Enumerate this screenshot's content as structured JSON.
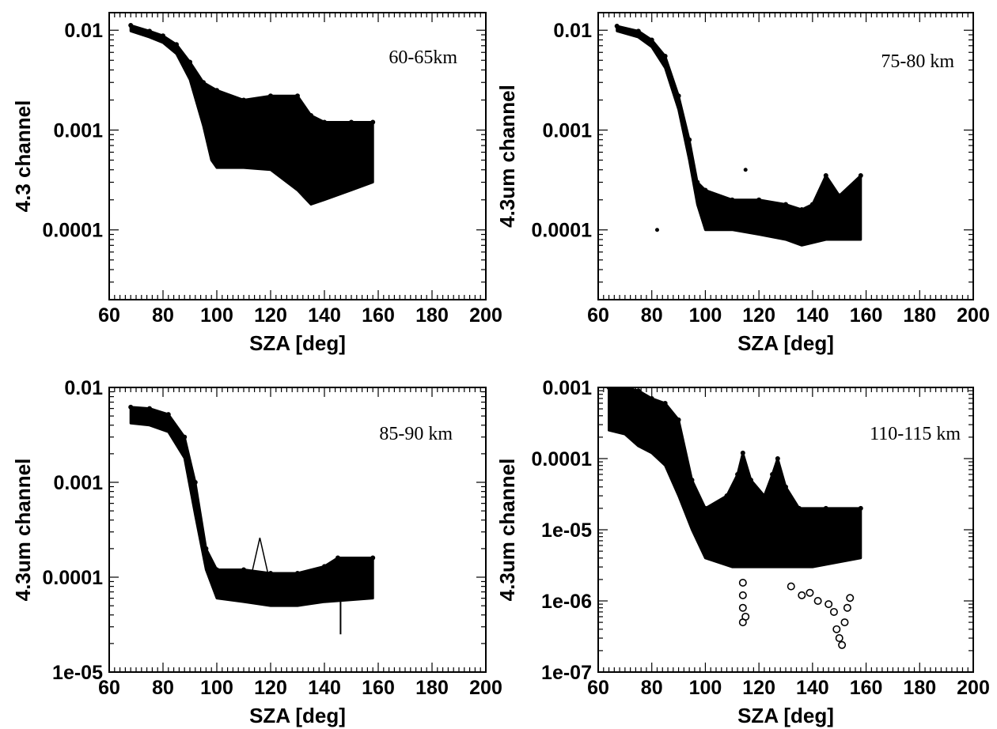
{
  "chart_data": [
    {
      "type": "scatter",
      "annotation": "60-65km",
      "xlabel": "SZA [deg]",
      "ylabel": "4.3 channel",
      "xlim": [
        60,
        200
      ],
      "ylim": [
        2e-05,
        0.015
      ],
      "yscale": "log",
      "grid": false,
      "xticks": [
        60,
        80,
        100,
        120,
        140,
        160,
        180,
        200
      ],
      "xtick_labels": [
        "60",
        "80",
        "100",
        "120",
        "140",
        "160",
        "180",
        "200"
      ],
      "yticks": [
        0.0001,
        0.001,
        0.01
      ],
      "ytick_labels": [
        "0.0001",
        "0.001",
        "0.01"
      ],
      "lower": [
        [
          68,
          0.0098
        ],
        [
          75,
          0.0085
        ],
        [
          80,
          0.0075
        ],
        [
          85,
          0.0058
        ],
        [
          90,
          0.0032
        ],
        [
          95,
          0.0011
        ],
        [
          98,
          0.0005
        ],
        [
          100,
          0.00042
        ],
        [
          110,
          0.00042
        ],
        [
          120,
          0.0004
        ],
        [
          130,
          0.00025
        ],
        [
          135,
          0.00018
        ],
        [
          140,
          0.0002
        ],
        [
          150,
          0.00025
        ],
        [
          158,
          0.0003
        ]
      ],
      "upper": [
        [
          68,
          0.0112
        ],
        [
          75,
          0.0098
        ],
        [
          80,
          0.0088
        ],
        [
          85,
          0.0072
        ],
        [
          90,
          0.0048
        ],
        [
          95,
          0.003
        ],
        [
          100,
          0.0025
        ],
        [
          110,
          0.002
        ],
        [
          120,
          0.0022
        ],
        [
          130,
          0.0022
        ],
        [
          135,
          0.0014
        ],
        [
          140,
          0.0012
        ],
        [
          150,
          0.0012
        ],
        [
          158,
          0.0012
        ]
      ],
      "outliers": []
    },
    {
      "type": "scatter",
      "annotation": "75-80 km",
      "xlabel": "SZA [deg]",
      "ylabel": "4.3um channel",
      "xlim": [
        60,
        200
      ],
      "ylim": [
        2e-05,
        0.015
      ],
      "yscale": "log",
      "grid": false,
      "xticks": [
        60,
        80,
        100,
        120,
        140,
        160,
        180,
        200
      ],
      "xtick_labels": [
        "60",
        "80",
        "100",
        "120",
        "140",
        "160",
        "180",
        "200"
      ],
      "yticks": [
        0.0001,
        0.001,
        0.01
      ],
      "ytick_labels": [
        "0.0001",
        "0.001",
        "0.01"
      ],
      "lower": [
        [
          67,
          0.0098
        ],
        [
          75,
          0.0085
        ],
        [
          80,
          0.0068
        ],
        [
          85,
          0.0042
        ],
        [
          90,
          0.0016
        ],
        [
          94,
          0.0005
        ],
        [
          97,
          0.00018
        ],
        [
          100,
          0.0001
        ],
        [
          110,
          0.0001
        ],
        [
          120,
          9e-05
        ],
        [
          130,
          8e-05
        ],
        [
          136,
          7e-05
        ],
        [
          145,
          8e-05
        ],
        [
          158,
          8e-05
        ]
      ],
      "upper": [
        [
          67,
          0.011
        ],
        [
          75,
          0.0098
        ],
        [
          80,
          0.008
        ],
        [
          85,
          0.0055
        ],
        [
          90,
          0.0022
        ],
        [
          94,
          0.0008
        ],
        [
          97,
          0.0003
        ],
        [
          100,
          0.00025
        ],
        [
          110,
          0.0002
        ],
        [
          120,
          0.0002
        ],
        [
          130,
          0.00018
        ],
        [
          136,
          0.00016
        ],
        [
          140,
          0.00018
        ],
        [
          145,
          0.00035
        ],
        [
          150,
          0.00022
        ],
        [
          158,
          0.00035
        ]
      ],
      "outliers": [
        [
          82,
          0.0001
        ],
        [
          115,
          0.0004
        ]
      ]
    },
    {
      "type": "scatter",
      "annotation": "85-90 km",
      "xlabel": "SZA [deg]",
      "ylabel": "4.3um channel",
      "xlim": [
        60,
        200
      ],
      "ylim": [
        1e-05,
        0.01
      ],
      "yscale": "log",
      "grid": false,
      "xticks": [
        60,
        80,
        100,
        120,
        140,
        160,
        180,
        200
      ],
      "xtick_labels": [
        "60",
        "80",
        "100",
        "120",
        "140",
        "160",
        "180",
        "200"
      ],
      "yticks": [
        1e-05,
        0.0001,
        0.001,
        0.01
      ],
      "ytick_labels": [
        "1e-05",
        "0.0001",
        "0.001",
        "0.01"
      ],
      "lower": [
        [
          68,
          0.0042
        ],
        [
          75,
          0.004
        ],
        [
          82,
          0.0034
        ],
        [
          88,
          0.0018
        ],
        [
          92,
          0.00045
        ],
        [
          96,
          0.00012
        ],
        [
          100,
          6e-05
        ],
        [
          110,
          5.5e-05
        ],
        [
          120,
          5e-05
        ],
        [
          130,
          5e-05
        ],
        [
          140,
          5.5e-05
        ],
        [
          158,
          6e-05
        ]
      ],
      "upper": [
        [
          68,
          0.0062
        ],
        [
          75,
          0.006
        ],
        [
          82,
          0.0052
        ],
        [
          88,
          0.003
        ],
        [
          92,
          0.001
        ],
        [
          96,
          0.0002
        ],
        [
          100,
          0.00012
        ],
        [
          110,
          0.00012
        ],
        [
          120,
          0.00011
        ],
        [
          130,
          0.00011
        ],
        [
          140,
          0.00013
        ],
        [
          145,
          0.00016
        ],
        [
          158,
          0.00016
        ]
      ],
      "spike": [
        [
          113,
          0.00011
        ],
        [
          116,
          0.00026
        ],
        [
          119,
          0.00011
        ]
      ],
      "outliers": [
        [
          146,
          2.5e-05
        ]
      ]
    },
    {
      "type": "scatter",
      "annotation": "110-115 km",
      "xlabel": "SZA [deg]",
      "ylabel": "4.3um channel",
      "xlim": [
        60,
        200
      ],
      "ylim": [
        1e-07,
        0.001
      ],
      "yscale": "log",
      "grid": false,
      "xticks": [
        60,
        80,
        100,
        120,
        140,
        160,
        180,
        200
      ],
      "xtick_labels": [
        "60",
        "80",
        "100",
        "120",
        "140",
        "160",
        "180",
        "200"
      ],
      "yticks": [
        1e-07,
        1e-06,
        1e-05,
        0.0001,
        0.001
      ],
      "ytick_labels": [
        "1e-07",
        "1e-06",
        "1e-05",
        "0.0001",
        "0.001"
      ],
      "lower": [
        [
          64,
          0.00025
        ],
        [
          70,
          0.00022
        ],
        [
          75,
          0.00015
        ],
        [
          80,
          0.00012
        ],
        [
          85,
          8e-05
        ],
        [
          90,
          3e-05
        ],
        [
          95,
          1e-05
        ],
        [
          100,
          4e-06
        ],
        [
          110,
          3e-06
        ],
        [
          120,
          3e-06
        ],
        [
          130,
          3e-06
        ],
        [
          140,
          3e-06
        ],
        [
          158,
          4e-06
        ]
      ],
      "upper": [
        [
          64,
          0.001
        ],
        [
          70,
          0.001
        ],
        [
          75,
          0.0009
        ],
        [
          80,
          0.0007
        ],
        [
          85,
          0.0006
        ],
        [
          90,
          0.00035
        ],
        [
          95,
          5e-05
        ],
        [
          100,
          2e-05
        ],
        [
          108,
          3e-05
        ],
        [
          112,
          6e-05
        ],
        [
          114,
          0.00012
        ],
        [
          117,
          5e-05
        ],
        [
          122,
          3e-05
        ],
        [
          125,
          6e-05
        ],
        [
          127,
          0.0001
        ],
        [
          130,
          4e-05
        ],
        [
          135,
          2e-05
        ],
        [
          145,
          2e-05
        ],
        [
          158,
          2e-05
        ]
      ],
      "outliers": [
        [
          114,
          5e-07
        ],
        [
          114,
          8e-07
        ],
        [
          114,
          1.2e-06
        ],
        [
          114,
          1.8e-06
        ],
        [
          115,
          6e-07
        ],
        [
          132,
          1.6e-06
        ],
        [
          136,
          1.2e-06
        ],
        [
          139,
          1.3e-06
        ],
        [
          142,
          1e-06
        ],
        [
          146,
          9e-07
        ],
        [
          148,
          7e-07
        ],
        [
          149,
          4e-07
        ],
        [
          150,
          3e-07
        ],
        [
          151,
          2.4e-07
        ],
        [
          152,
          5e-07
        ],
        [
          153,
          8e-07
        ],
        [
          154,
          1.1e-06
        ]
      ]
    }
  ]
}
